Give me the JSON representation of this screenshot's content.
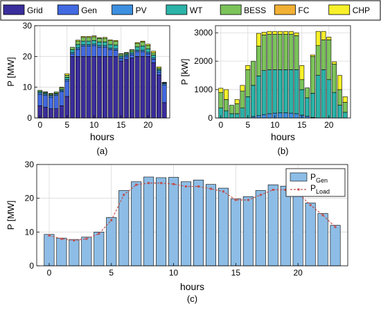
{
  "legend": {
    "entries": [
      {
        "label": "Grid",
        "color": "#3a2d9c"
      },
      {
        "label": "Gen",
        "color": "#4169e1"
      },
      {
        "label": "PV",
        "color": "#3d8fe0"
      },
      {
        "label": "WT",
        "color": "#2bb3a8"
      },
      {
        "label": "BESS",
        "color": "#7cc35a"
      },
      {
        "label": "FC",
        "color": "#f2b134"
      },
      {
        "label": "CHP",
        "color": "#f7f02a"
      }
    ]
  },
  "chart_data": [
    {
      "type": "bar",
      "stacked": true,
      "subtitle": "(a)",
      "xlabel": "hours",
      "ylabel": "P [MW]",
      "ylim": [
        0,
        30
      ],
      "yticks": [
        0,
        10,
        20,
        30
      ],
      "xticks": [
        0,
        5,
        10,
        15,
        20
      ],
      "x": [
        0,
        1,
        2,
        3,
        4,
        5,
        6,
        7,
        8,
        9,
        10,
        11,
        12,
        13,
        14,
        15,
        16,
        17,
        18,
        19,
        20,
        21,
        22,
        23
      ],
      "grid": true,
      "series": [
        {
          "name": "Grid",
          "values": [
            4,
            3.5,
            3,
            3,
            4,
            7,
            20,
            20,
            20,
            20,
            20,
            20,
            20,
            20,
            20,
            18.5,
            19,
            19.5,
            20,
            20,
            20,
            18,
            14,
            5
          ]
        },
        {
          "name": "Gen",
          "values": [
            3.7,
            3.8,
            3.8,
            4.3,
            4.6,
            5.0,
            0.8,
            2.3,
            3.3,
            3.3,
            3.5,
            3.0,
            3.0,
            2.2,
            2.0,
            0.8,
            0.9,
            1.0,
            1.5,
            1.5,
            0.9,
            1.1,
            0.9,
            5.7
          ]
        },
        {
          "name": "PV",
          "values": [
            0.5,
            0.5,
            0.5,
            0.5,
            0.4,
            0.5,
            0.5,
            0.5,
            0.5,
            0.5,
            0.5,
            0.5,
            0.5,
            0.5,
            0.5,
            0.5,
            0.5,
            0.5,
            0.5,
            0.5,
            0.5,
            0.5,
            0.5,
            0.5
          ]
        },
        {
          "name": "WT",
          "values": [
            0.4,
            0.3,
            0.2,
            0.2,
            0.3,
            0.7,
            0.9,
            1.1,
            1.2,
            1.2,
            1.2,
            1.2,
            1.2,
            1.2,
            1.2,
            0.4,
            0.4,
            0.5,
            1.1,
            1.4,
            1.1,
            0.8,
            0.4,
            0.2
          ]
        },
        {
          "name": "BESS",
          "values": [
            0.4,
            0.3,
            0.4,
            0.5,
            0.5,
            0.7,
            0.8,
            1.1,
            1.2,
            1.2,
            1.2,
            1.2,
            1.2,
            1.2,
            1.2,
            0.6,
            0.4,
            0.6,
            1.1,
            1.3,
            1.1,
            0.8,
            0.4,
            0.1
          ]
        },
        {
          "name": "FC",
          "values": [
            0,
            0,
            0,
            0,
            0,
            0,
            0,
            0,
            0,
            0,
            0,
            0,
            0,
            0,
            0,
            0,
            0,
            0,
            0,
            0,
            0,
            0,
            0,
            0
          ]
        },
        {
          "name": "CHP",
          "values": [
            0,
            0.1,
            0.1,
            0,
            0.2,
            0.5,
            0,
            0.3,
            0.3,
            0.3,
            0.3,
            0.2,
            0.3,
            0.3,
            0.3,
            0.1,
            0.1,
            0.1,
            0.3,
            0.3,
            0.4,
            0.5,
            0.4,
            0.1
          ]
        }
      ]
    },
    {
      "type": "bar",
      "stacked": true,
      "subtitle": "(b)",
      "xlabel": "hours",
      "ylabel": "P [kW]",
      "ylim": [
        0,
        3250
      ],
      "yticks": [
        0,
        1000,
        2000,
        3000
      ],
      "xticks": [
        0,
        5,
        10,
        15,
        20
      ],
      "x": [
        0,
        1,
        2,
        3,
        4,
        5,
        6,
        7,
        8,
        9,
        10,
        11,
        12,
        13,
        14,
        15,
        16,
        17,
        18,
        19,
        20,
        21,
        22,
        23
      ],
      "grid": true,
      "series": [
        {
          "name": "PV",
          "values": [
            0,
            0,
            0,
            0,
            0,
            0,
            50,
            80,
            120,
            150,
            170,
            180,
            180,
            170,
            150,
            100,
            60,
            20,
            0,
            0,
            0,
            0,
            0,
            0
          ]
        },
        {
          "name": "WT",
          "values": [
            350,
            250,
            150,
            150,
            350,
            750,
            1100,
            1400,
            1550,
            1550,
            1530,
            1520,
            1520,
            1530,
            1550,
            900,
            650,
            850,
            1500,
            1700,
            1350,
            900,
            450,
            200
          ]
        },
        {
          "name": "BESS",
          "values": [
            550,
            400,
            300,
            350,
            600,
            950,
            850,
            1050,
            1250,
            1250,
            1250,
            1250,
            1250,
            1250,
            1200,
            350,
            350,
            1300,
            1050,
            1050,
            1400,
            1000,
            550,
            350
          ]
        },
        {
          "name": "FC",
          "values": [
            0,
            0,
            0,
            0,
            0,
            0,
            0,
            0,
            0,
            0,
            0,
            0,
            0,
            0,
            0,
            0,
            0,
            0,
            0,
            0,
            0,
            0,
            0,
            0
          ]
        },
        {
          "name": "CHP",
          "values": [
            150,
            350,
            0,
            150,
            200,
            150,
            0,
            450,
            100,
            100,
            100,
            100,
            100,
            100,
            100,
            500,
            0,
            50,
            500,
            300,
            100,
            80,
            500,
            200
          ]
        }
      ]
    },
    {
      "type": "bar",
      "subtitle": "(c)",
      "xlabel": "hours",
      "ylabel": "P [MW]",
      "ylim": [
        0,
        30
      ],
      "yticks": [
        0,
        10,
        20,
        30
      ],
      "xticks": [
        0,
        5,
        10,
        15,
        20
      ],
      "x": [
        0,
        1,
        2,
        3,
        4,
        5,
        6,
        7,
        8,
        9,
        10,
        11,
        12,
        13,
        14,
        15,
        16,
        17,
        18,
        19,
        20,
        21,
        22,
        23
      ],
      "grid": true,
      "legend_position": "top-right",
      "series": [
        {
          "name": "P_Gen",
          "values": [
            9.3,
            8.2,
            7.8,
            8.5,
            10.0,
            14.3,
            22.3,
            24.9,
            26.3,
            26.1,
            26.2,
            24.9,
            25.4,
            24.1,
            23.0,
            19.8,
            20.5,
            22.3,
            24.0,
            23.6,
            22.6,
            18.6,
            15.5,
            12.0
          ]
        },
        {
          "name": "P_Load",
          "values": [
            9.0,
            8.0,
            7.5,
            8.0,
            9.5,
            13.5,
            21.0,
            24.0,
            24.5,
            24.5,
            24.2,
            23.5,
            23.5,
            22.8,
            22.0,
            19.5,
            19.5,
            21.0,
            22.5,
            22.5,
            21.5,
            18.0,
            15.0,
            11.5
          ]
        }
      ]
    }
  ],
  "panel_c_legend": {
    "gen_main": "P",
    "gen_sub": "Gen",
    "load_main": "P",
    "load_sub": "Load",
    "gen_color": "#8dbde6",
    "load_color": "#c0504d"
  }
}
